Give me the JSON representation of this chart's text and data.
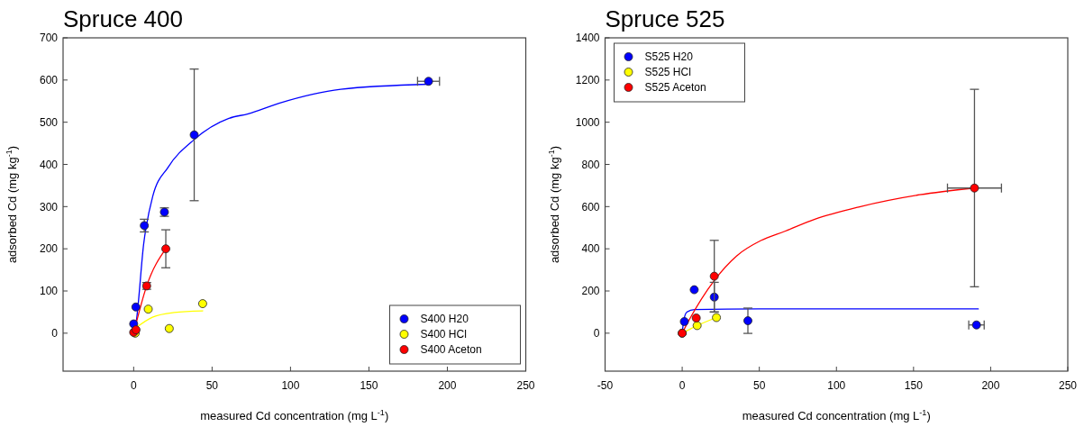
{
  "chart_data": [
    {
      "type": "scatter",
      "title": "Spruce 400",
      "xlabel": "measured Cd concentration (mg L$^{-1}$)",
      "ylabel": "adsorbed Cd (mg kg$^{-1}$)",
      "xlim": [
        -45,
        250
      ],
      "ylim": [
        -90,
        700
      ],
      "xticks": [
        0,
        50,
        100,
        150,
        200,
        250
      ],
      "yticks": [
        0,
        100,
        200,
        300,
        400,
        500,
        600,
        700
      ],
      "legend": "bottom right",
      "marker": "circle",
      "series": [
        {
          "type": "line",
          "marker": "none",
          "color": "#0000ff",
          "x": [
            0,
            1.5,
            6.4,
            12.2,
            21.9,
            38.6,
            60.7,
            73,
            92.7,
            132,
            188
          ],
          "values": [
            0,
            24,
            212,
            325,
            393,
            459,
            509,
            520,
            545,
            578,
            590
          ]
        },
        {
          "type": "line",
          "marker": "none",
          "color": "#ffff00",
          "x": [
            1.5,
            12,
            25.8,
            44
          ],
          "values": [
            13,
            38,
            49,
            53
          ]
        },
        {
          "type": "line",
          "marker": "none",
          "color": "#ff0000",
          "x": [
            0,
            8.3,
            20.5
          ],
          "values": [
            0,
            112,
            200
          ]
        },
        {
          "name": "S400 H20",
          "color": "#0000ff",
          "x": [
            0,
            1.4,
            6.8,
            19.6,
            38.6,
            188
          ],
          "values": [
            22,
            62,
            255,
            287,
            470,
            597
          ],
          "errors": [
            null,
            null,
            15,
            10,
            156,
            null
          ],
          "xerrors": [
            null,
            null,
            null,
            null,
            null,
            7
          ]
        },
        {
          "name": "S400 HCl",
          "color": "#ffff00",
          "x": [
            1,
            9.3,
            22.7,
            44
          ],
          "values": [
            0,
            57,
            11,
            70
          ]
        },
        {
          "name": "S400 Aceton",
          "color": "#ff0000",
          "x": [
            0,
            1.5,
            8.3,
            20.5
          ],
          "values": [
            2,
            8,
            112,
            200
          ],
          "errors": [
            null,
            null,
            8,
            45
          ]
        }
      ]
    },
    {
      "type": "scatter",
      "title": "Spruce 525",
      "xlabel": "measured Cd concentration (mg L$^{-1}$)",
      "ylabel": "adsorbed Cd (mg kg$^{-1}$)",
      "xlim": [
        -50,
        250
      ],
      "ylim": [
        -180,
        1400
      ],
      "xticks": [
        -50,
        0,
        50,
        100,
        150,
        200,
        250
      ],
      "yticks": [
        0,
        200,
        400,
        600,
        800,
        1000,
        1200,
        1400
      ],
      "legend": "top left",
      "marker": "circle",
      "series": [
        {
          "type": "line",
          "marker": "none",
          "color": "#0000ff",
          "x": [
            0,
            1,
            3,
            8,
            50,
            192
          ],
          "values": [
            0,
            60,
            100,
            112,
            115,
            115
          ]
        },
        {
          "type": "line",
          "marker": "none",
          "color": "#ffff00",
          "x": [
            0,
            9.7,
            22.2
          ],
          "values": [
            0,
            36,
            74
          ]
        },
        {
          "type": "line",
          "marker": "none",
          "color": "#ff0000",
          "x": [
            0,
            4.3,
            20.8,
            35.4,
            51,
            66.5,
            86,
            115,
            154,
            189.5
          ],
          "values": [
            0,
            60,
            250,
            367,
            439,
            483,
            540,
            599,
            656,
            688
          ]
        },
        {
          "name": "S525 H20",
          "color": "#0000ff",
          "x": [
            1.4,
            7.8,
            20.8,
            42.6,
            190.8
          ],
          "values": [
            55,
            206,
            171,
            59,
            39
          ],
          "errors": [
            null,
            null,
            70,
            60,
            null
          ],
          "xerrors": [
            null,
            null,
            null,
            null,
            5
          ]
        },
        {
          "name": "S525 HCl",
          "color": "#ffff00",
          "x": [
            0,
            9.7,
            22.2
          ],
          "values": [
            0,
            36,
            74
          ]
        },
        {
          "name": "S525 Aceton",
          "color": "#ff0000",
          "x": [
            0,
            9.1,
            20.8,
            189.5
          ],
          "values": [
            0,
            72,
            270,
            688
          ],
          "errors": [
            null,
            null,
            170,
            468
          ],
          "xerrors": [
            null,
            null,
            null,
            17.5
          ]
        }
      ]
    }
  ]
}
